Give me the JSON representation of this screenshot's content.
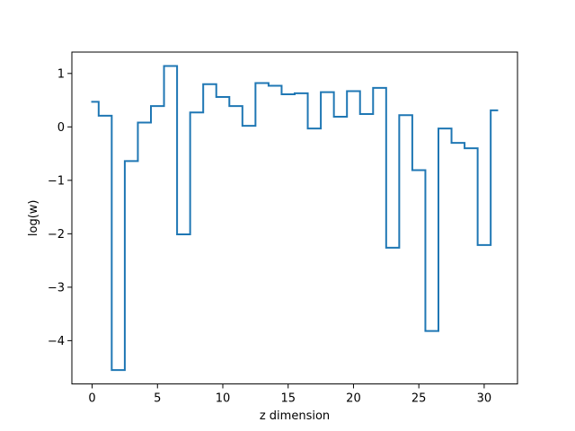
{
  "chart_data": {
    "type": "line",
    "drawstyle": "steps-mid",
    "title": "",
    "xlabel": "z dimension",
    "ylabel": "log(w)",
    "xlim": [
      -1.55,
      32.55
    ],
    "ylim": [
      -4.81,
      1.4
    ],
    "grid": false,
    "legend": "none",
    "line_color": "#1f77b4",
    "x_ticks": [
      0,
      5,
      10,
      15,
      20,
      25,
      30
    ],
    "x_tick_labels": [
      "0",
      "5",
      "10",
      "15",
      "20",
      "25",
      "30"
    ],
    "y_ticks": [
      -4,
      -3,
      -2,
      -1,
      0,
      1
    ],
    "y_tick_labels": [
      "−4",
      "−3",
      "−2",
      "−1",
      "0",
      "1"
    ],
    "series": [
      {
        "x": [
          0,
          1,
          2,
          3,
          4,
          5,
          6,
          7,
          8,
          9,
          10,
          11,
          12,
          13,
          14,
          15,
          16,
          17,
          18,
          19,
          20,
          21,
          22,
          23,
          24,
          25,
          26,
          27,
          28,
          29,
          30,
          31
        ],
        "values": [
          0.47,
          0.21,
          -4.55,
          -0.64,
          0.08,
          0.39,
          1.14,
          -2.01,
          0.27,
          0.8,
          0.56,
          0.39,
          0.02,
          0.82,
          0.77,
          0.61,
          0.63,
          -0.03,
          0.65,
          0.19,
          0.67,
          0.24,
          0.73,
          -2.26,
          0.22,
          -0.81,
          -3.82,
          -0.03,
          -0.3,
          -0.4,
          -2.21,
          0.31
        ]
      }
    ]
  }
}
